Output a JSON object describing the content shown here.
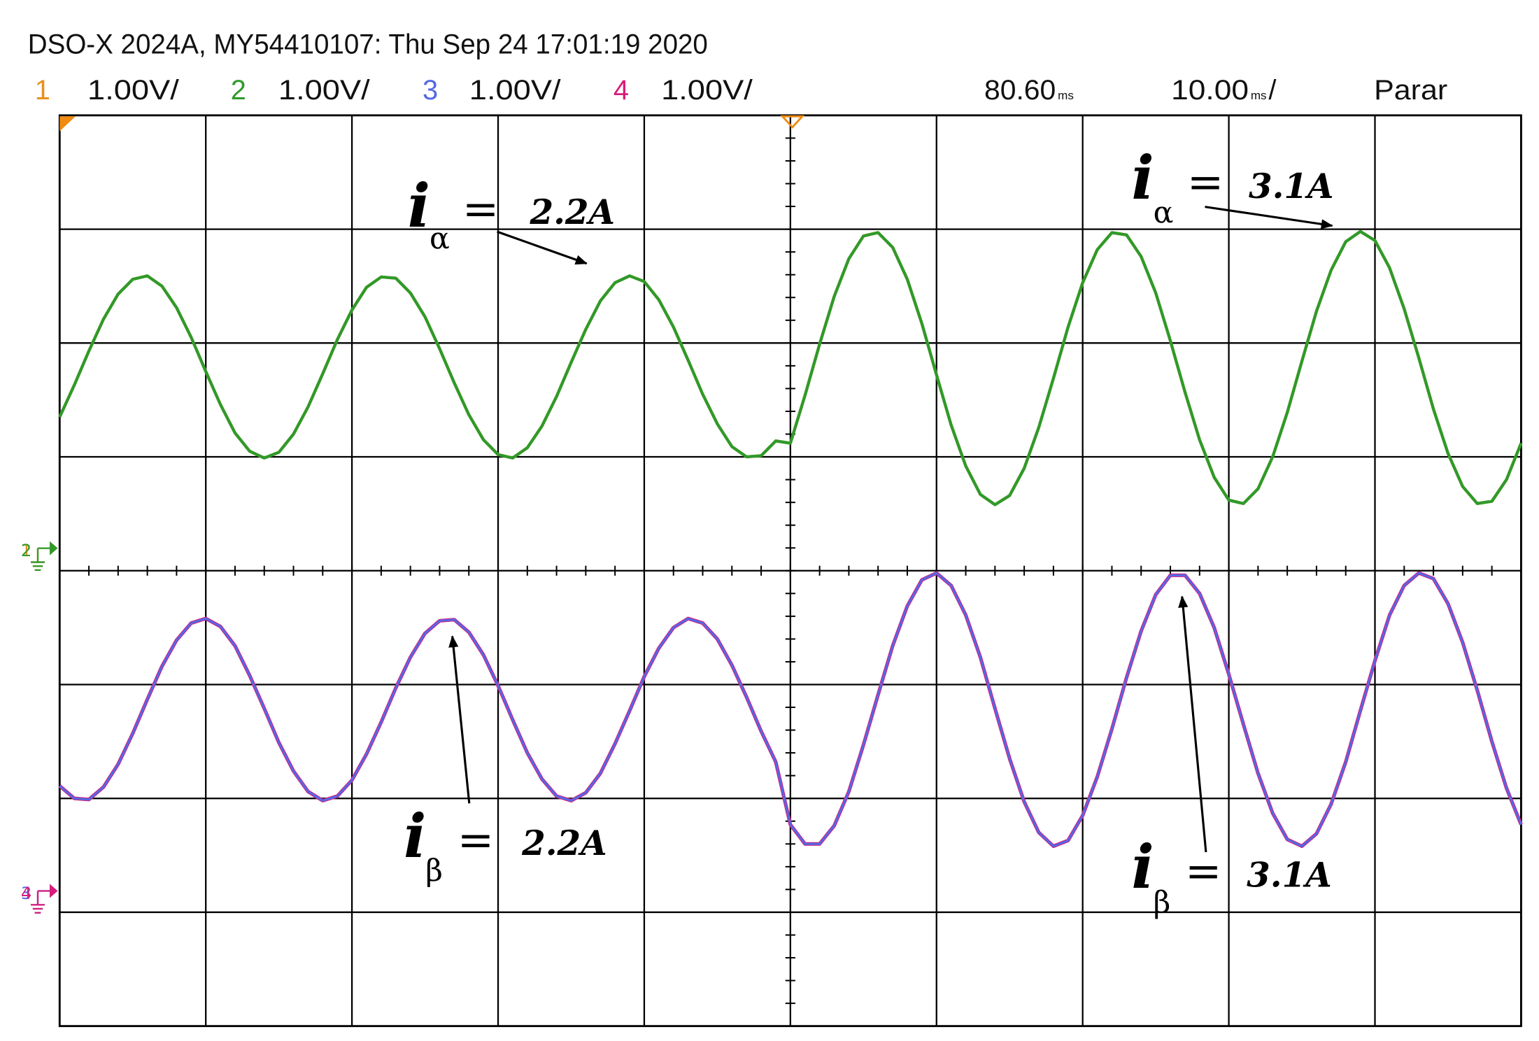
{
  "chart_data": {
    "type": "line",
    "header": "DSO-X 2024A, MY54410107: Thu Sep 24 17:01:19 2020",
    "delay_text": "80.60",
    "delay_unit": "ms",
    "timebase_text": "10.00",
    "timebase_unit": "ms",
    "timebase_suffix": "/",
    "status": "Parar",
    "xlim": [
      0,
      100
    ],
    "ylim": [
      -4,
      4
    ],
    "xticks": [
      0,
      10,
      20,
      30,
      40,
      50,
      60,
      70,
      80,
      90,
      100
    ],
    "yticks": [
      -4,
      -3,
      -2,
      -1,
      0,
      1,
      2,
      3,
      4
    ],
    "grid": true,
    "x": [
      0,
      1,
      2,
      3,
      4,
      5,
      6,
      7,
      8,
      9,
      10,
      11,
      12,
      13,
      14,
      15,
      16,
      17,
      18,
      19,
      20,
      21,
      22,
      23,
      24,
      25,
      26,
      27,
      28,
      29,
      30,
      31,
      32,
      33,
      34,
      35,
      36,
      37,
      38,
      39,
      40,
      41,
      42,
      43,
      44,
      45,
      46,
      47,
      48,
      49,
      50,
      51,
      52,
      53,
      54,
      55,
      56,
      57,
      58,
      59,
      60,
      61,
      62,
      63,
      64,
      65,
      66,
      67,
      68,
      69,
      70,
      71,
      72,
      73,
      74,
      75,
      76,
      77,
      78,
      79,
      80,
      81,
      82,
      83,
      84,
      85,
      86,
      87,
      88,
      89,
      90,
      91,
      92,
      93,
      94,
      95,
      96,
      97,
      98,
      99,
      100
    ],
    "series": [
      {
        "name": "1",
        "scale": "1.00V/",
        "color": "#e8901e",
        "ground": 0.11,
        "values": [
          1.35,
          1.63,
          1.93,
          2.21,
          2.43,
          2.56,
          2.59,
          2.5,
          2.31,
          2.05,
          1.75,
          1.46,
          1.21,
          1.05,
          0.99,
          1.04,
          1.2,
          1.44,
          1.73,
          2.03,
          2.29,
          2.49,
          2.58,
          2.57,
          2.44,
          2.23,
          1.95,
          1.65,
          1.37,
          1.15,
          1.02,
          0.99,
          1.08,
          1.27,
          1.53,
          1.83,
          2.12,
          2.37,
          2.53,
          2.59,
          2.54,
          2.38,
          2.14,
          1.85,
          1.55,
          1.29,
          1.09,
          1.0,
          1.01,
          1.14,
          1.12,
          1.54,
          1.99,
          2.41,
          2.74,
          2.94,
          2.97,
          2.84,
          2.56,
          2.17,
          1.72,
          1.28,
          0.92,
          0.67,
          0.58,
          0.66,
          0.9,
          1.26,
          1.69,
          2.14,
          2.53,
          2.82,
          2.97,
          2.95,
          2.76,
          2.44,
          2.02,
          1.57,
          1.15,
          0.82,
          0.62,
          0.59,
          0.72,
          1.0,
          1.39,
          1.84,
          2.28,
          2.64,
          2.89,
          2.98,
          2.9,
          2.66,
          2.3,
          1.87,
          1.42,
          1.03,
          0.74,
          0.59,
          0.61,
          0.8,
          1.12
        ]
      },
      {
        "name": "2",
        "scale": "1.00V/",
        "color": "#2f9a2a",
        "ground": 0.11,
        "values": [
          1.35,
          1.63,
          1.93,
          2.21,
          2.43,
          2.56,
          2.59,
          2.5,
          2.31,
          2.05,
          1.75,
          1.46,
          1.21,
          1.05,
          0.99,
          1.04,
          1.2,
          1.44,
          1.73,
          2.03,
          2.29,
          2.49,
          2.58,
          2.57,
          2.44,
          2.23,
          1.95,
          1.65,
          1.37,
          1.15,
          1.02,
          0.99,
          1.08,
          1.27,
          1.53,
          1.83,
          2.12,
          2.37,
          2.53,
          2.59,
          2.54,
          2.38,
          2.14,
          1.85,
          1.55,
          1.29,
          1.09,
          1.0,
          1.01,
          1.14,
          1.12,
          1.54,
          1.99,
          2.41,
          2.74,
          2.94,
          2.97,
          2.84,
          2.56,
          2.17,
          1.72,
          1.28,
          0.92,
          0.67,
          0.58,
          0.66,
          0.9,
          1.26,
          1.69,
          2.14,
          2.53,
          2.82,
          2.97,
          2.95,
          2.76,
          2.44,
          2.02,
          1.57,
          1.15,
          0.82,
          0.62,
          0.59,
          0.72,
          1.0,
          1.39,
          1.84,
          2.28,
          2.64,
          2.89,
          2.98,
          2.9,
          2.66,
          2.3,
          1.87,
          1.42,
          1.03,
          0.74,
          0.59,
          0.61,
          0.8,
          1.12
        ]
      },
      {
        "name": "3",
        "scale": "1.00V/",
        "color": "#5468e4",
        "ground": -2.9,
        "values": [
          -1.89,
          -2.0,
          -2.01,
          -1.9,
          -1.7,
          -1.43,
          -1.13,
          -0.84,
          -0.61,
          -0.46,
          -0.42,
          -0.49,
          -0.66,
          -0.92,
          -1.21,
          -1.51,
          -1.76,
          -1.94,
          -2.02,
          -1.98,
          -1.84,
          -1.61,
          -1.33,
          -1.03,
          -0.76,
          -0.55,
          -0.44,
          -0.43,
          -0.54,
          -0.74,
          -1.01,
          -1.31,
          -1.6,
          -1.83,
          -1.98,
          -2.02,
          -1.95,
          -1.78,
          -1.52,
          -1.23,
          -0.93,
          -0.68,
          -0.5,
          -0.42,
          -0.46,
          -0.6,
          -0.83,
          -1.11,
          -1.41,
          -1.68,
          -2.23,
          -2.4,
          -2.4,
          -2.24,
          -1.94,
          -1.53,
          -1.09,
          -0.66,
          -0.31,
          -0.08,
          -0.02,
          -0.13,
          -0.39,
          -0.76,
          -1.21,
          -1.65,
          -2.03,
          -2.3,
          -2.42,
          -2.37,
          -2.15,
          -1.81,
          -1.39,
          -0.94,
          -0.53,
          -0.21,
          -0.04,
          -0.04,
          -0.2,
          -0.5,
          -0.91,
          -1.35,
          -1.78,
          -2.13,
          -2.36,
          -2.42,
          -2.31,
          -2.05,
          -1.68,
          -1.23,
          -0.79,
          -0.39,
          -0.13,
          -0.02,
          -0.07,
          -0.29,
          -0.63,
          -1.05,
          -1.5,
          -1.91,
          -2.23
        ]
      },
      {
        "name": "4",
        "scale": "1.00V/",
        "color": "#d81c7c",
        "ground": -2.9,
        "values": [
          -1.89,
          -2.0,
          -2.01,
          -1.9,
          -1.7,
          -1.43,
          -1.13,
          -0.84,
          -0.61,
          -0.46,
          -0.42,
          -0.49,
          -0.66,
          -0.92,
          -1.21,
          -1.51,
          -1.76,
          -1.94,
          -2.02,
          -1.98,
          -1.84,
          -1.61,
          -1.33,
          -1.03,
          -0.76,
          -0.55,
          -0.44,
          -0.43,
          -0.54,
          -0.74,
          -1.01,
          -1.31,
          -1.6,
          -1.83,
          -1.98,
          -2.02,
          -1.95,
          -1.78,
          -1.52,
          -1.23,
          -0.93,
          -0.68,
          -0.5,
          -0.42,
          -0.46,
          -0.6,
          -0.83,
          -1.11,
          -1.41,
          -1.68,
          -2.23,
          -2.4,
          -2.4,
          -2.24,
          -1.94,
          -1.53,
          -1.09,
          -0.66,
          -0.31,
          -0.08,
          -0.02,
          -0.13,
          -0.39,
          -0.76,
          -1.21,
          -1.65,
          -2.03,
          -2.3,
          -2.42,
          -2.37,
          -2.15,
          -1.81,
          -1.39,
          -0.94,
          -0.53,
          -0.21,
          -0.04,
          -0.04,
          -0.2,
          -0.5,
          -0.91,
          -1.35,
          -1.78,
          -2.13,
          -2.36,
          -2.42,
          -2.31,
          -2.05,
          -1.68,
          -1.23,
          -0.79,
          -0.39,
          -0.13,
          -0.02,
          -0.07,
          -0.29,
          -0.63,
          -1.05,
          -1.5,
          -1.91,
          -2.23
        ]
      }
    ],
    "annotations": [
      {
        "base": "i",
        "sub": "α",
        "eq": "=",
        "text": "2.2A"
      },
      {
        "base": "i",
        "sub": "α",
        "eq": "=",
        "text": "3.1A"
      },
      {
        "base": "i",
        "sub": "β",
        "eq": "=",
        "text": "2.2A"
      },
      {
        "base": "i",
        "sub": "β",
        "eq": "=",
        "text": "3.1A"
      }
    ]
  }
}
